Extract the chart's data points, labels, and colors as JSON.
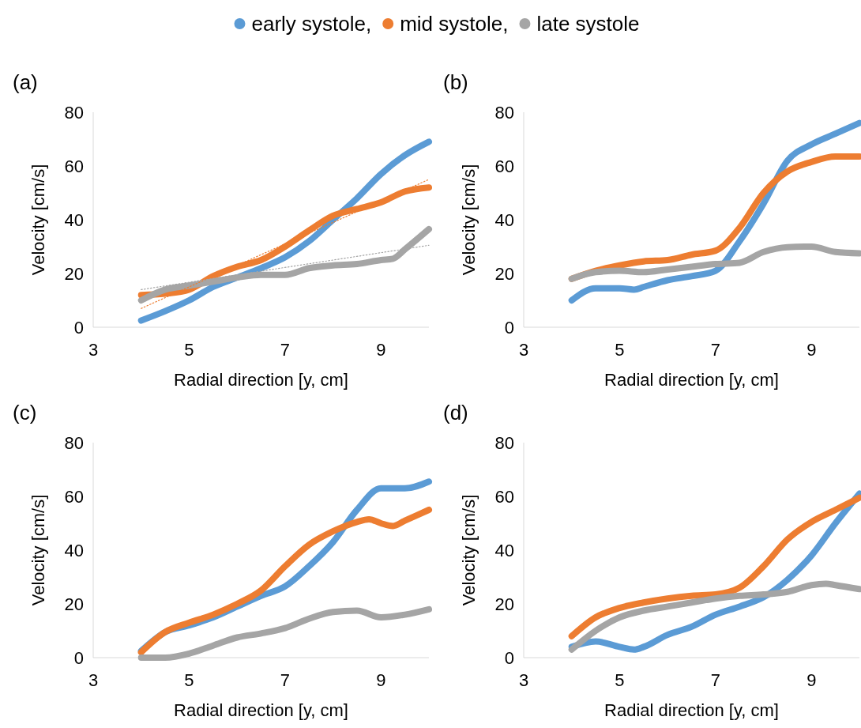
{
  "chart_data": [
    {
      "type": "line",
      "title": "(a)",
      "xlabel": "Radial direction [y, cm]",
      "ylabel": "Velocity [cm/s]",
      "xlim": [
        3,
        10
      ],
      "xticks": [
        3,
        5,
        7,
        9
      ],
      "ylim": [
        0,
        80
      ],
      "yticks": [
        0,
        20,
        40,
        60,
        80
      ],
      "legend": "top",
      "series": [
        {
          "name": "early systole,",
          "color": "#5b9bd5",
          "x": [
            4,
            4.5,
            5,
            5.5,
            6,
            6.5,
            7,
            7.5,
            8,
            8.5,
            9,
            9.5,
            10
          ],
          "values": [
            2.5,
            6,
            10,
            15,
            18.5,
            22,
            26,
            32,
            40,
            48,
            57,
            64,
            69
          ]
        },
        {
          "name": "mid systole,",
          "color": "#ed7d31",
          "x": [
            4,
            4.5,
            5,
            5.5,
            6,
            6.5,
            7,
            7.5,
            8,
            8.5,
            9,
            9.5,
            10
          ],
          "values": [
            12,
            12.5,
            14,
            19,
            22.5,
            25,
            30,
            36,
            41.5,
            44,
            46.5,
            50.5,
            52
          ]
        },
        {
          "name": "late systole",
          "color": "#a5a5a5",
          "x": [
            4,
            4.5,
            5,
            5.5,
            6,
            6.5,
            7,
            7.5,
            8,
            8.5,
            9,
            9.25,
            9.5,
            10
          ],
          "values": [
            10,
            14,
            15.5,
            17,
            18.5,
            19.5,
            19.5,
            22,
            23,
            23.5,
            25,
            25.5,
            29,
            36.5
          ]
        },
        {
          "type": "line",
          "color": "#ed7d31",
          "line_style": "dotted",
          "x": [
            4,
            10
          ],
          "values": [
            7,
            55
          ]
        },
        {
          "type": "line",
          "color": "#a5a5a5",
          "line_style": "dotted",
          "x": [
            4,
            10
          ],
          "values": [
            14,
            30.5
          ]
        }
      ]
    },
    {
      "type": "line",
      "title": "(b)",
      "xlabel": "Radial direction [y, cm]",
      "ylabel": "Velocity [cm/s]",
      "xlim": [
        3,
        10
      ],
      "xticks": [
        3,
        5,
        7,
        9
      ],
      "ylim": [
        0,
        80
      ],
      "yticks": [
        0,
        20,
        40,
        60,
        80
      ],
      "series": [
        {
          "color": "#5b9bd5",
          "x": [
            4,
            4.5,
            5,
            5.3,
            5.5,
            6,
            6.5,
            7,
            7.5,
            8,
            8.5,
            9,
            9.5,
            10
          ],
          "values": [
            10,
            14.5,
            14.5,
            14,
            15,
            17.5,
            19,
            21,
            32,
            46,
            62,
            68,
            72,
            76
          ]
        },
        {
          "color": "#ed7d31",
          "x": [
            4,
            4.5,
            5,
            5.5,
            6,
            6.5,
            7,
            7.5,
            8,
            8.5,
            9,
            9.5,
            10
          ],
          "values": [
            18,
            21,
            23,
            24.5,
            25,
            27,
            28.5,
            37,
            50,
            58,
            61.5,
            63.5,
            63.5
          ]
        },
        {
          "color": "#a5a5a5",
          "x": [
            4,
            4.5,
            5,
            5.5,
            6,
            6.5,
            7,
            7.5,
            8,
            8.5,
            9,
            9.5,
            10
          ],
          "values": [
            18,
            20.5,
            21,
            20.5,
            21.5,
            22.5,
            23.5,
            24,
            28,
            29.8,
            30,
            28,
            27.5
          ]
        }
      ]
    },
    {
      "type": "line",
      "title": "(c)",
      "xlabel": "Radial direction [y, cm]",
      "ylabel": "Velocity [cm/s]",
      "xlim": [
        3,
        10
      ],
      "xticks": [
        3,
        5,
        7,
        9
      ],
      "ylim": [
        0,
        80
      ],
      "yticks": [
        0,
        20,
        40,
        60,
        80
      ],
      "series": [
        {
          "color": "#5b9bd5",
          "x": [
            4,
            4.5,
            5,
            5.5,
            6,
            6.5,
            7,
            7.5,
            8,
            8.5,
            9,
            9.5,
            10
          ],
          "values": [
            2.5,
            9.5,
            12,
            15,
            19,
            23,
            26.5,
            34,
            43,
            55,
            63,
            63,
            65.5
          ]
        },
        {
          "color": "#ed7d31",
          "x": [
            4,
            4.5,
            5,
            5.5,
            6,
            6.5,
            7,
            7.5,
            8,
            8.5,
            8.75,
            9,
            9.25,
            9.5,
            10
          ],
          "values": [
            2,
            9.5,
            13,
            16,
            20,
            25,
            34,
            42,
            47,
            50.5,
            51.5,
            50,
            49,
            51,
            55
          ]
        },
        {
          "color": "#a5a5a5",
          "x": [
            4,
            4.5,
            5,
            5.5,
            6,
            6.5,
            7,
            7.5,
            8,
            8.5,
            9,
            9.5,
            10
          ],
          "values": [
            0,
            0,
            1.5,
            4.5,
            7.5,
            9,
            11,
            14.5,
            17,
            17.5,
            15,
            16,
            18
          ]
        }
      ]
    },
    {
      "type": "line",
      "title": "(d)",
      "xlabel": "Radial direction [y, cm]",
      "ylabel": "Velocity [cm/s]",
      "xlim": [
        3,
        10
      ],
      "xticks": [
        3,
        5,
        7,
        9
      ],
      "ylim": [
        0,
        80
      ],
      "yticks": [
        0,
        20,
        40,
        60,
        80
      ],
      "series": [
        {
          "color": "#5b9bd5",
          "x": [
            4,
            4.5,
            5,
            5.3,
            5.5,
            6,
            6.5,
            7,
            7.5,
            8,
            8.5,
            9,
            9.5,
            10
          ],
          "values": [
            4,
            6,
            4,
            3,
            4,
            8.5,
            11.5,
            16,
            19,
            22.5,
            29,
            38,
            50,
            61
          ]
        },
        {
          "color": "#ed7d31",
          "x": [
            4,
            4.5,
            5,
            5.5,
            6,
            6.5,
            7,
            7.5,
            8,
            8.5,
            9,
            9.5,
            10
          ],
          "values": [
            8,
            15,
            18.5,
            20.5,
            22,
            23,
            23.5,
            26,
            34,
            44,
            50.5,
            55,
            59.5
          ]
        },
        {
          "color": "#a5a5a5",
          "x": [
            4,
            4.5,
            5,
            5.5,
            6,
            6.5,
            7,
            7.5,
            8,
            8.5,
            9,
            9.3,
            9.5,
            10
          ],
          "values": [
            3,
            10,
            15,
            17.5,
            19,
            20.5,
            22,
            23,
            23.5,
            24.5,
            27,
            27.5,
            27,
            25.5
          ]
        }
      ]
    }
  ]
}
